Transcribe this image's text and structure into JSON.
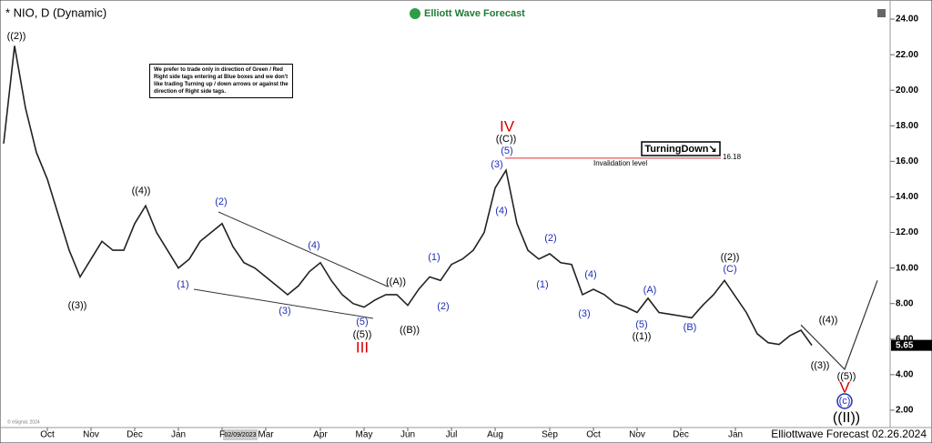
{
  "chart_data": {
    "type": "line",
    "title": "* NIO, D (Dynamic)",
    "brand": "Elliott Wave Forecast",
    "footer": "Elliottwave Forecast 02.26.2024",
    "copyright": "© eSignal, 2024",
    "crosshair_date": "02/09/2023",
    "note": "We prefer to trade only in direction of Green / Red Right side tags entering at Blue boxes and we don't like trading Turning up / down arrows or against the direction of Right side tags.",
    "tag": "TurningDown↘",
    "invalidation": {
      "value": 16.18,
      "text": "Invalidation level"
    },
    "last_price": {
      "value": 5.65,
      "label": "5.65"
    },
    "categories": [
      null,
      null,
      null,
      null,
      "Oct",
      null,
      null,
      null,
      "Nov",
      null,
      null,
      null,
      "Dec",
      null,
      null,
      null,
      "Jan",
      null,
      null,
      null,
      "F",
      null,
      null,
      null,
      "Mar",
      null,
      null,
      null,
      null,
      "Apr",
      null,
      null,
      null,
      "May",
      null,
      null,
      null,
      "Jun",
      null,
      null,
      null,
      "Jul",
      null,
      null,
      null,
      "Aug",
      null,
      null,
      null,
      null,
      "Sep",
      null,
      null,
      null,
      "Oct",
      null,
      null,
      null,
      "Nov",
      null,
      null,
      null,
      "Dec",
      null,
      null,
      null,
      null,
      "Jan",
      null,
      null,
      null,
      null,
      null,
      null,
      null,
      null,
      null,
      null,
      null,
      null,
      null
    ],
    "series": [
      {
        "color": "#222222",
        "values": [
          17,
          22.5,
          19,
          16.5,
          15,
          13,
          11,
          9.5,
          10.5,
          11.5,
          11,
          11,
          12.5,
          13.5,
          12,
          11,
          10,
          10.5,
          11.5,
          12,
          12.5,
          11.2,
          10.3,
          10,
          9.5,
          9,
          8.5,
          9,
          9.8,
          10.3,
          9.3,
          8.5,
          8,
          7.8,
          8.2,
          8.5,
          8.5,
          7.9,
          8.8,
          9.5,
          9.3,
          10.2,
          10.5,
          11,
          12,
          14.5,
          15.5,
          12.5,
          11,
          10.5,
          10.8,
          10.3,
          10.2,
          8.5,
          8.8,
          8.5,
          8,
          7.8,
          7.5,
          8.3,
          7.5,
          7.4,
          7.3,
          7.2,
          7.9,
          8.5,
          9.3,
          8.4,
          7.5,
          6.3,
          5.8,
          5.7,
          6.2,
          6.5,
          5.65,
          null,
          null,
          null,
          null,
          null,
          null
        ]
      },
      {
        "color": "#333333",
        "values": [
          null,
          null,
          null,
          null,
          null,
          null,
          null,
          null,
          null,
          null,
          null,
          null,
          null,
          null,
          null,
          null,
          null,
          null,
          null,
          null,
          null,
          null,
          null,
          null,
          null,
          null,
          null,
          null,
          null,
          null,
          null,
          null,
          null,
          null,
          null,
          null,
          null,
          null,
          null,
          null,
          null,
          null,
          null,
          null,
          null,
          null,
          null,
          null,
          null,
          null,
          null,
          null,
          null,
          null,
          null,
          null,
          null,
          null,
          null,
          null,
          null,
          null,
          null,
          null,
          null,
          null,
          null,
          null,
          null,
          null,
          null,
          null,
          null,
          6.8,
          null,
          null,
          null,
          4.3,
          null,
          null,
          9.3
        ]
      }
    ],
    "annotations": [
      {
        "text": "((2))",
        "color": "#000"
      },
      {
        "text": "((3))",
        "color": "#000"
      },
      {
        "text": "((4))",
        "color": "#000"
      },
      {
        "text": "(1)",
        "color": "#1f2fb5"
      },
      {
        "text": "(2)",
        "color": "#1f2fb5"
      },
      {
        "text": "(3)",
        "color": "#1f2fb5"
      },
      {
        "text": "(4)",
        "color": "#1f2fb5"
      },
      {
        "text": "(5)",
        "color": "#1f2fb5"
      },
      {
        "text": "((5))",
        "color": "#000"
      },
      {
        "text": "III",
        "color": "#d40000"
      },
      {
        "text": "((A))",
        "color": "#000"
      },
      {
        "text": "((B))",
        "color": "#000"
      },
      {
        "text": "(1)",
        "color": "#1f2fb5"
      },
      {
        "text": "(2)",
        "color": "#1f2fb5"
      },
      {
        "text": "(3)",
        "color": "#1f2fb5"
      },
      {
        "text": "(4)",
        "color": "#1f2fb5"
      },
      {
        "text": "(5)",
        "color": "#1f2fb5"
      },
      {
        "text": "((C))",
        "color": "#000"
      },
      {
        "text": "IV",
        "color": "#d40000"
      },
      {
        "text": "(2)",
        "color": "#1f2fb5"
      },
      {
        "text": "(1)",
        "color": "#1f2fb5"
      },
      {
        "text": "(4)",
        "color": "#1f2fb5"
      },
      {
        "text": "(3)",
        "color": "#1f2fb5"
      },
      {
        "text": "(A)",
        "color": "#1f2fb5"
      },
      {
        "text": "(5)",
        "color": "#1f2fb5"
      },
      {
        "text": "((1))",
        "color": "#000"
      },
      {
        "text": "(B)",
        "color": "#1f2fb5"
      },
      {
        "text": "((2))",
        "color": "#000"
      },
      {
        "text": "(C)",
        "color": "#1f2fb5"
      },
      {
        "text": "((4))",
        "color": "#000"
      },
      {
        "text": "((3))",
        "color": "#000"
      },
      {
        "text": "((5))",
        "color": "#000"
      },
      {
        "text": "V",
        "color": "#d40000"
      },
      {
        "text": "(c)",
        "color": "#1f2fb5"
      },
      {
        "text": "((II))",
        "color": "#000"
      }
    ],
    "ylim": [
      1,
      25
    ],
    "yticks": [
      {
        "value": 2,
        "label": "2.00"
      },
      {
        "value": 4,
        "label": "4.00"
      },
      {
        "value": 6,
        "label": "6.00"
      },
      {
        "value": 8,
        "label": "8.00"
      },
      {
        "value": 10,
        "label": "10.00"
      },
      {
        "value": 12,
        "label": "12.00"
      },
      {
        "value": 14,
        "label": "14.00"
      },
      {
        "value": 16,
        "label": "16.00"
      },
      {
        "value": 18,
        "label": "18.00"
      },
      {
        "value": 20,
        "label": "20.00"
      },
      {
        "value": 22,
        "label": "22.00"
      },
      {
        "value": 24,
        "label": "24.00"
      }
    ]
  }
}
